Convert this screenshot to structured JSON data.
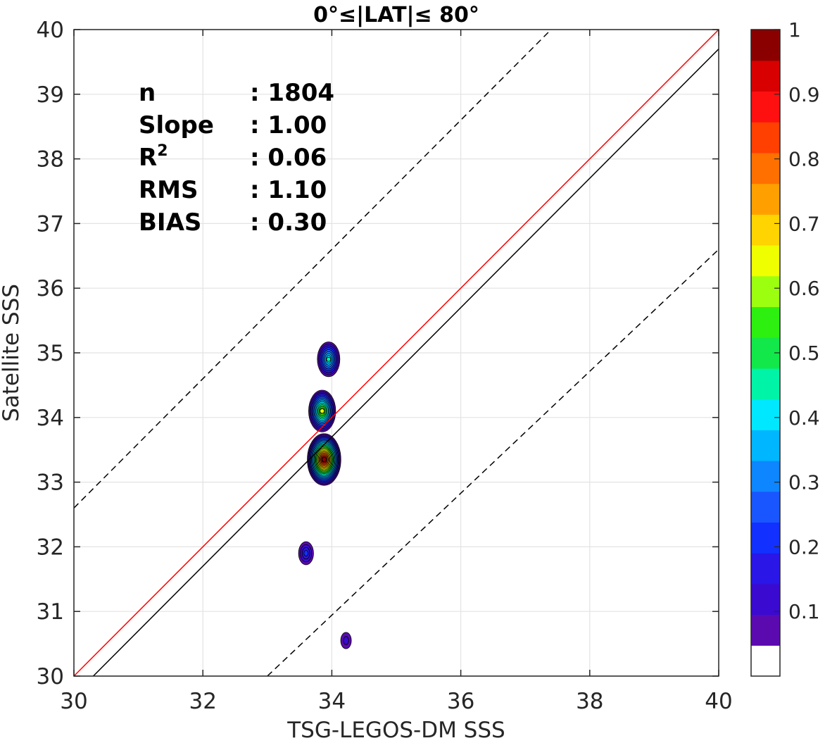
{
  "chart_data": {
    "type": "contour",
    "title": "0°≤|LAT|≤ 80°",
    "xlabel": "TSG-LEGOS-DM SSS",
    "ylabel": "Satellite SSS",
    "xlim": [
      30,
      40
    ],
    "ylim": [
      30,
      40
    ],
    "xticks": [
      "30",
      "32",
      "34",
      "36",
      "38",
      "40"
    ],
    "yticks": [
      "30",
      "31",
      "32",
      "33",
      "34",
      "35",
      "36",
      "37",
      "38",
      "39",
      "40"
    ],
    "grid": true,
    "stats": [
      {
        "label": "n",
        "value": ": 1804"
      },
      {
        "label": "Slope",
        "value": ": 1.00"
      },
      {
        "label": "R",
        "sup": "2",
        "value": ": 0.06"
      },
      {
        "label": "RMS",
        "value": ": 1.10"
      },
      {
        "label": "BIAS",
        "value": ": 0.30"
      }
    ],
    "reference_lines": [
      {
        "name": "1:1",
        "color": "#ff0000",
        "style": "solid",
        "points": [
          [
            30,
            30
          ],
          [
            40,
            40
          ]
        ]
      },
      {
        "name": "fit",
        "color": "#000000",
        "style": "solid",
        "points": [
          [
            30.3,
            30
          ],
          [
            40,
            39.7
          ]
        ]
      },
      {
        "name": "upper",
        "color": "#000000",
        "style": "dashed",
        "points": [
          [
            30,
            32.6
          ],
          [
            37.4,
            40
          ]
        ]
      },
      {
        "name": "lower",
        "color": "#000000",
        "style": "dashed",
        "points": [
          [
            33,
            30
          ],
          [
            40,
            36.6
          ]
        ]
      }
    ],
    "density_peaks": [
      {
        "x": 33.88,
        "y": 33.35,
        "value": 1.0
      },
      {
        "x": 33.85,
        "y": 34.1,
        "value": 0.65
      },
      {
        "x": 33.95,
        "y": 34.9,
        "value": 0.45
      },
      {
        "x": 33.6,
        "y": 31.9,
        "value": 0.2
      },
      {
        "x": 34.22,
        "y": 30.55,
        "value": 0.1
      }
    ],
    "colorbar": {
      "ticks": [
        "0.1",
        "0.2",
        "0.3",
        "0.4",
        "0.5",
        "0.6",
        "0.7",
        "0.8",
        "0.9",
        "1"
      ],
      "colors": [
        "#ffffff",
        "#5b0ab0",
        "#3a0ad0",
        "#2a16e6",
        "#1230ff",
        "#1a56ff",
        "#0d86ff",
        "#00b6ff",
        "#00e8ff",
        "#00f4a8",
        "#12e84a",
        "#2ef010",
        "#9cff10",
        "#f0ff00",
        "#ffd400",
        "#ffa000",
        "#ff7000",
        "#ff4000",
        "#ff1010",
        "#d80000",
        "#8a0000"
      ]
    }
  }
}
